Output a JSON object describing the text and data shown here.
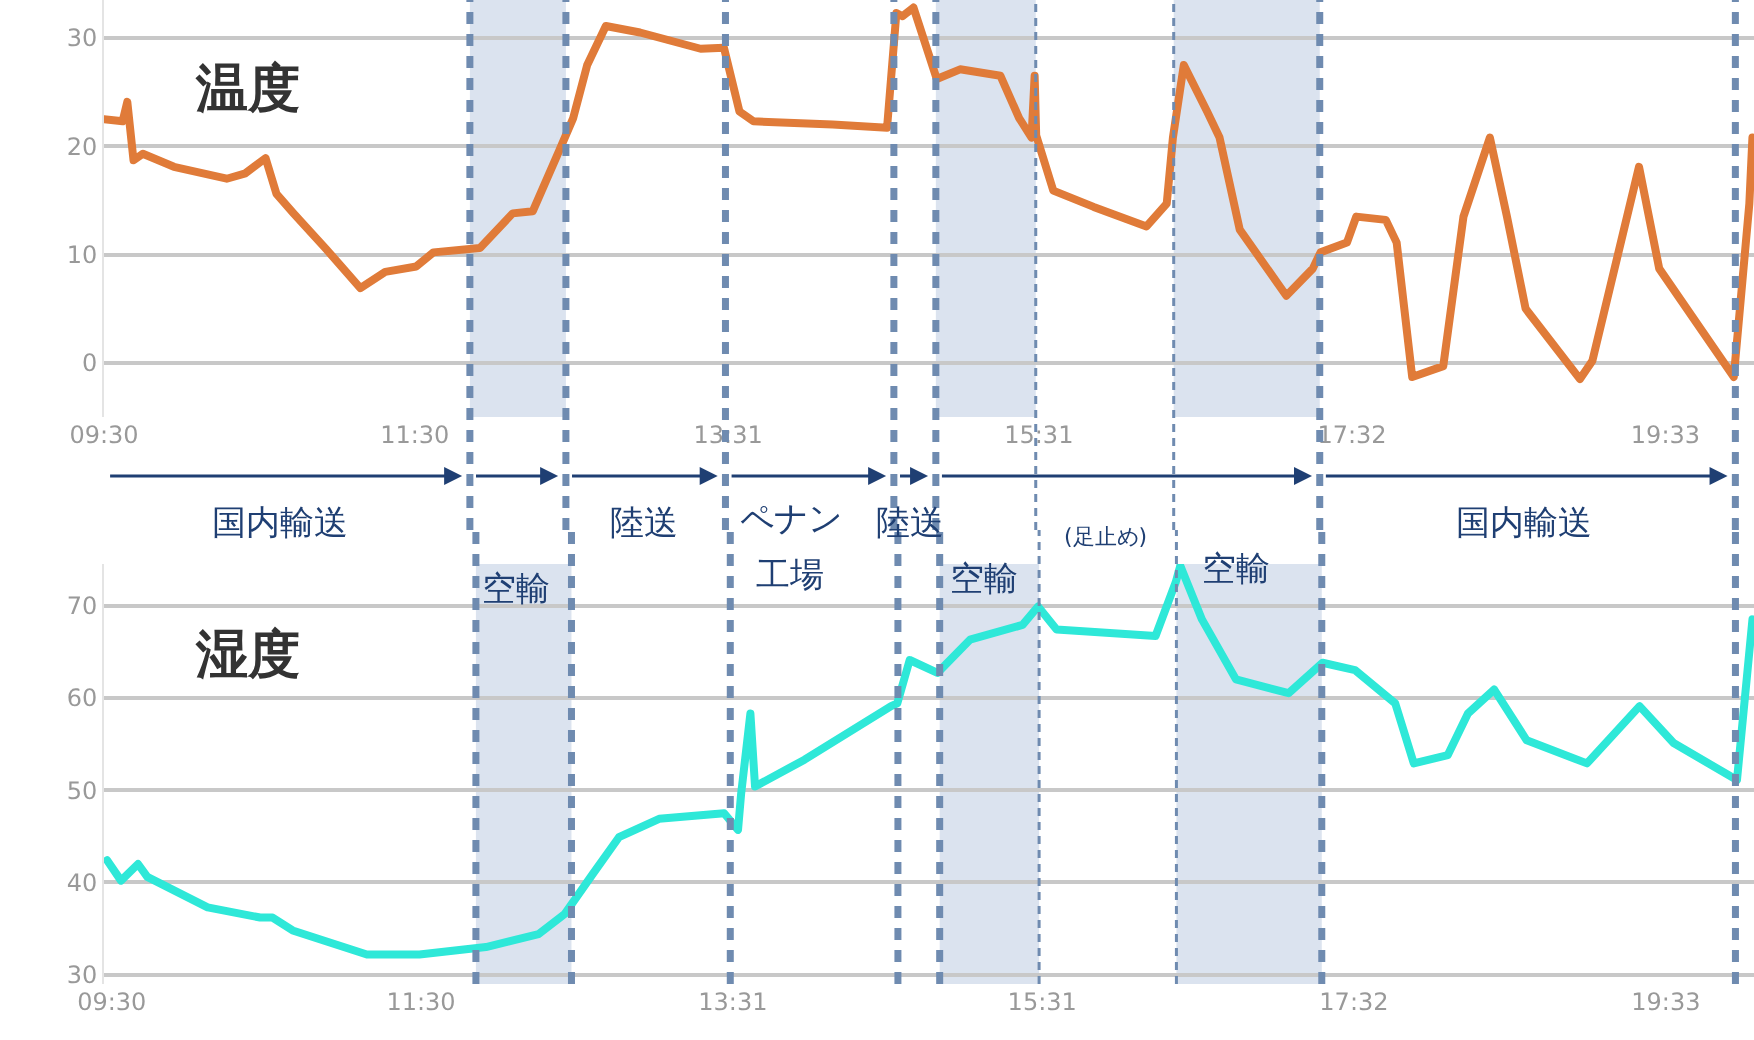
{
  "chart_data": [
    {
      "type": "line",
      "title": "温度",
      "x": [
        9.5,
        9.62,
        9.65,
        9.69,
        9.75,
        9.95,
        10.29,
        10.41,
        10.54,
        10.61,
        10.72,
        10.93,
        11.15,
        11.31,
        11.51,
        11.62,
        11.92,
        12.13,
        12.26,
        12.43,
        12.52,
        12.61,
        12.73,
        12.95,
        13.34,
        13.49,
        13.59,
        13.68,
        14.19,
        14.54,
        14.6,
        14.64,
        14.71,
        14.86,
        15.01,
        15.27,
        15.39,
        15.47,
        15.49,
        15.5,
        15.61,
        15.87,
        16.21,
        16.34,
        16.38,
        16.45,
        16.6,
        16.68,
        16.81,
        17.11,
        17.28,
        17.33,
        17.5,
        17.56,
        17.75,
        17.82,
        17.92,
        18.12,
        18.25,
        18.42,
        18.53,
        18.65,
        19.0,
        19.08,
        19.38,
        19.51,
        19.99,
        20.09,
        20.11
      ],
      "series": [
        {
          "color": "#e07b39",
          "values": [
            22.5,
            22.3,
            24.1,
            18.7,
            19.3,
            18.1,
            17.0,
            17.5,
            18.9,
            15.6,
            13.8,
            10.5,
            6.9,
            8.4,
            8.9,
            10.2,
            10.6,
            13.8,
            14.0,
            19.6,
            22.6,
            27.5,
            31.1,
            30.5,
            29.0,
            29.1,
            23.2,
            22.3,
            22.0,
            21.7,
            32.3,
            32.0,
            32.8,
            26.2,
            27.1,
            26.5,
            22.6,
            20.8,
            26.5,
            21.0,
            15.9,
            14.4,
            12.6,
            14.7,
            20.8,
            27.5,
            23.2,
            20.8,
            12.3,
            6.2,
            8.7,
            10.2,
            11.1,
            13.5,
            13.2,
            11.1,
            -1.3,
            -0.3,
            13.5,
            20.8,
            13.5,
            5.0,
            -1.5,
            0.2,
            18.1,
            8.7,
            -1.3,
            14.7,
            20.8
          ]
        }
      ],
      "xlim": [
        9.5,
        20.12
      ],
      "xticks": [
        {
          "value": 9.5,
          "label": "09:30"
        },
        {
          "value": 11.5,
          "label": "11:30"
        },
        {
          "value": 13.517,
          "label": "13:31"
        },
        {
          "value": 15.517,
          "label": "15:31"
        },
        {
          "value": 17.533,
          "label": "17:32"
        },
        {
          "value": 19.55,
          "label": "19:33"
        }
      ],
      "ylim": [
        -5,
        33.5
      ],
      "yticks": [
        0,
        10,
        20,
        30
      ],
      "grid": "y",
      "line_style": "solid",
      "ref_lines": [
        {
          "axis": "x",
          "value": 11.855,
          "line_style": "dashed",
          "color": "#6f8bb0"
        },
        {
          "axis": "x",
          "value": 12.473,
          "line_style": "dashed",
          "color": "#6f8bb0"
        },
        {
          "axis": "x",
          "value": 13.5,
          "line_style": "dashed",
          "color": "#6f8bb0"
        },
        {
          "axis": "x",
          "value": 14.584,
          "line_style": "dashed",
          "color": "#6f8bb0"
        },
        {
          "axis": "x",
          "value": 14.854,
          "line_style": "dashed",
          "color": "#6f8bb0"
        },
        {
          "axis": "x",
          "value": 15.497,
          "line_style": "dotted",
          "color": "#6f8bb0"
        },
        {
          "axis": "x",
          "value": 16.385,
          "line_style": "dotted",
          "color": "#6f8bb0"
        },
        {
          "axis": "x",
          "value": 17.325,
          "line_style": "dashed",
          "color": "#6f8bb0"
        },
        {
          "axis": "x",
          "value": 20.0,
          "line_style": "dashed",
          "color": "#6f8bb0"
        }
      ],
      "bands": [
        {
          "axis": "x",
          "from": 11.855,
          "to": 12.473,
          "color": "#dbe3ef"
        },
        {
          "axis": "x",
          "from": 14.854,
          "to": 15.497,
          "color": "#dbe3ef"
        },
        {
          "axis": "x",
          "from": 16.385,
          "to": 17.325,
          "color": "#dbe3ef"
        }
      ],
      "annotations": [
        "国内輸送",
        "空輸",
        "陸送",
        "ペナン",
        "工場",
        "陸送",
        "空輸",
        "(足止め)",
        "空輸",
        "国内輸送"
      ]
    },
    {
      "type": "line",
      "title": "湿度",
      "x": [
        9.47,
        9.56,
        9.67,
        9.73,
        10.12,
        10.46,
        10.54,
        10.67,
        11.15,
        11.49,
        11.92,
        12.26,
        12.43,
        12.61,
        12.78,
        13.04,
        13.46,
        13.55,
        13.57,
        13.63,
        13.66,
        13.98,
        14.54,
        14.58,
        14.66,
        14.84,
        15.05,
        15.39,
        15.49,
        15.61,
        16.25,
        16.38,
        16.41,
        16.55,
        16.77,
        17.11,
        17.33,
        17.54,
        17.8,
        17.92,
        18.14,
        18.27,
        18.44,
        18.65,
        19.04,
        19.38,
        19.6,
        20.01,
        20.11
      ],
      "series": [
        {
          "color": "#2ee8d8",
          "values": [
            42.4,
            40.2,
            42.0,
            40.6,
            37.3,
            36.2,
            36.2,
            34.8,
            32.2,
            32.2,
            33.0,
            34.4,
            36.6,
            40.9,
            44.9,
            46.9,
            47.5,
            45.7,
            49.6,
            58.3,
            50.4,
            53.3,
            59.1,
            59.4,
            64.1,
            62.7,
            66.3,
            67.9,
            69.9,
            67.4,
            66.7,
            72.5,
            74.3,
            68.5,
            62.0,
            60.5,
            63.8,
            63.0,
            59.4,
            52.9,
            53.8,
            58.3,
            60.9,
            55.4,
            52.9,
            59.1,
            55.1,
            51.1,
            68.5
          ]
        }
      ],
      "xlim": [
        9.45,
        20.12
      ],
      "xticks": [
        {
          "value": 9.5,
          "label": "09:30"
        },
        {
          "value": 11.5,
          "label": "11:30"
        },
        {
          "value": 13.517,
          "label": "13:31"
        },
        {
          "value": 15.517,
          "label": "15:31"
        },
        {
          "value": 17.533,
          "label": "17:32"
        },
        {
          "value": 19.55,
          "label": "19:33"
        }
      ],
      "ylim": [
        29,
        74.5
      ],
      "yticks": [
        30,
        40,
        50,
        60,
        70
      ],
      "grid": "y",
      "line_style": "solid",
      "ref_lines": [
        {
          "axis": "x",
          "value": 11.855,
          "line_style": "dashed",
          "color": "#6f8bb0"
        },
        {
          "axis": "x",
          "value": 12.473,
          "line_style": "dashed",
          "color": "#6f8bb0"
        },
        {
          "axis": "x",
          "value": 13.5,
          "line_style": "dashed",
          "color": "#6f8bb0"
        },
        {
          "axis": "x",
          "value": 14.584,
          "line_style": "dashed",
          "color": "#6f8bb0"
        },
        {
          "axis": "x",
          "value": 14.854,
          "line_style": "dashed",
          "color": "#6f8bb0"
        },
        {
          "axis": "x",
          "value": 15.497,
          "line_style": "dotted",
          "color": "#6f8bb0"
        },
        {
          "axis": "x",
          "value": 16.385,
          "line_style": "dotted",
          "color": "#6f8bb0"
        },
        {
          "axis": "x",
          "value": 17.325,
          "line_style": "dashed",
          "color": "#6f8bb0"
        },
        {
          "axis": "x",
          "value": 20.0,
          "line_style": "dashed",
          "color": "#6f8bb0"
        }
      ],
      "bands": [
        {
          "axis": "x",
          "from": 11.855,
          "to": 12.473,
          "color": "#dbe3ef"
        },
        {
          "axis": "x",
          "from": 14.854,
          "to": 15.497,
          "color": "#dbe3ef"
        },
        {
          "axis": "x",
          "from": 16.385,
          "to": 17.325,
          "color": "#dbe3ef"
        }
      ]
    }
  ]
}
